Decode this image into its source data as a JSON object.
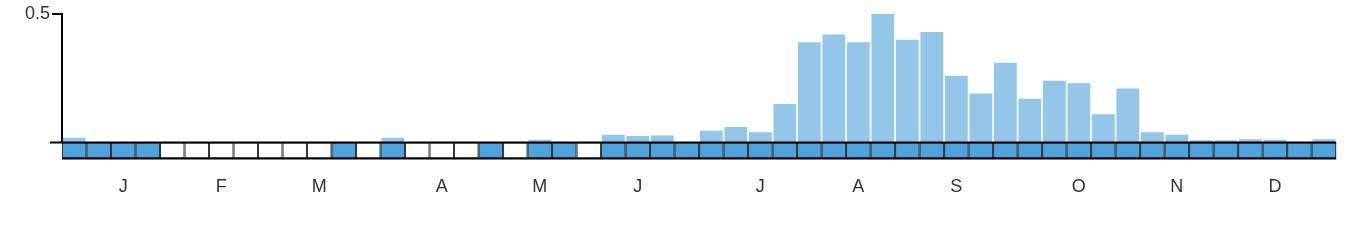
{
  "chart_data": {
    "type": "bar",
    "categories": [
      null,
      null,
      "J",
      null,
      null,
      null,
      "F",
      null,
      null,
      null,
      "M",
      null,
      null,
      null,
      null,
      "A",
      null,
      null,
      null,
      "M",
      null,
      null,
      null,
      "J",
      null,
      null,
      null,
      null,
      "J",
      null,
      null,
      null,
      "A",
      null,
      null,
      null,
      "S",
      null,
      null,
      null,
      null,
      "O",
      null,
      null,
      null,
      "N",
      null,
      null,
      null,
      "D",
      null,
      null
    ],
    "values": [
      0.018,
      0,
      0,
      0,
      0,
      0,
      0,
      0,
      0,
      0,
      0,
      0,
      0,
      0.018,
      0,
      0,
      0,
      0,
      0,
      0.01,
      0,
      0,
      0.03,
      0.025,
      0.027,
      0,
      0.045,
      0.06,
      0.04,
      0.15,
      0.39,
      0.42,
      0.39,
      0.5,
      0.4,
      0.43,
      0.26,
      0.19,
      0.31,
      0.17,
      0.24,
      0.23,
      0.11,
      0.21,
      0.04,
      0.03,
      0.008,
      0.008,
      0.012,
      0.01,
      0,
      0.012
    ],
    "coverage": [
      true,
      true,
      true,
      true,
      false,
      false,
      false,
      false,
      false,
      false,
      false,
      true,
      false,
      true,
      false,
      false,
      false,
      true,
      false,
      true,
      true,
      false,
      true,
      true,
      true,
      true,
      true,
      true,
      true,
      true,
      true,
      true,
      true,
      true,
      true,
      true,
      true,
      true,
      true,
      true,
      true,
      true,
      true,
      true,
      true,
      true,
      true,
      true,
      true,
      true,
      true,
      true
    ],
    "color": "#93c6e8",
    "ylim": [
      0,
      0.5
    ],
    "yticks": [
      0.5
    ],
    "grid": false
  }
}
